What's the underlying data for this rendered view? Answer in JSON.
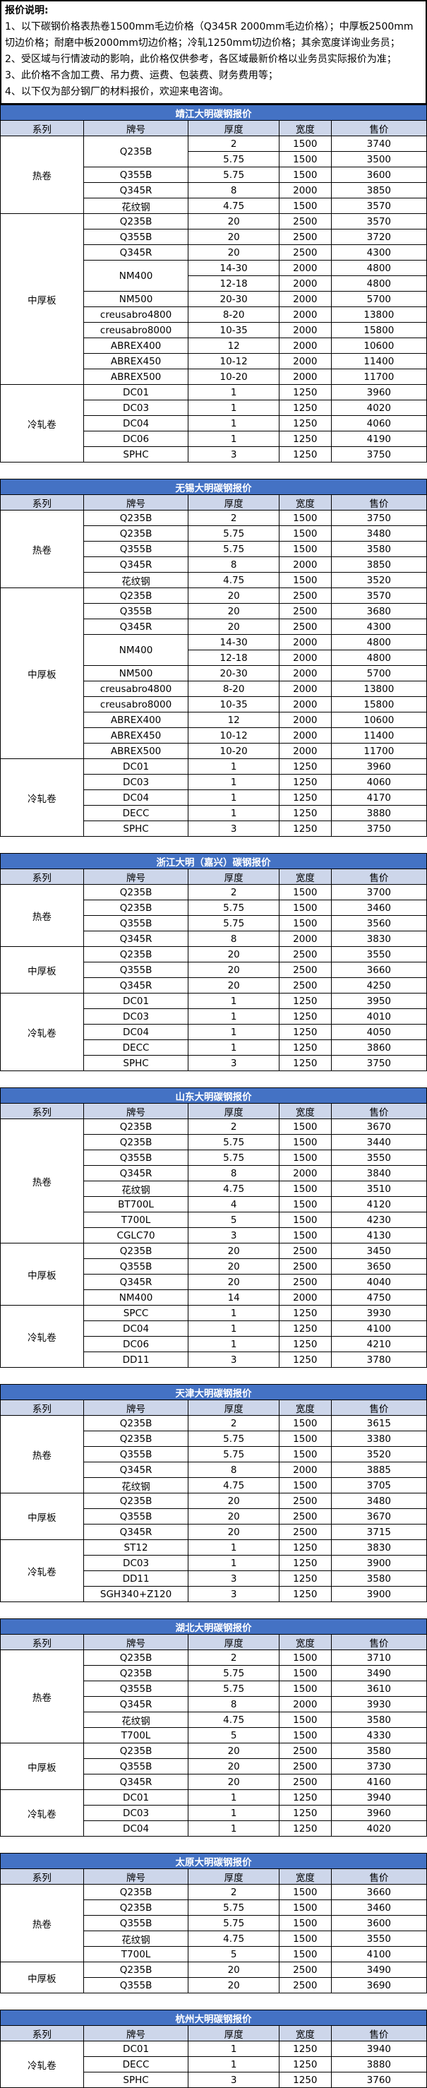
{
  "notes": {
    "heading": "报价说明:",
    "lines": [
      "1、以下碳钢价格表热卷1500mm毛边价格（Q345R 2000mm毛边价格）；中厚板2500mm切边价格；耐磨中板2000mm切边价格；冷轧1250mm切边价格；其余宽度详询业务员；",
      "2、受区域与行情波动的影响，此价格仅供参考，各区域最新价格以业务员实际报价为准；",
      "3、此价格不含加工费、吊力费、运费、包装费、财务费用等；",
      "4、以下仅为部分钢厂的材料报价，欢迎来电咨询。"
    ]
  },
  "columns": [
    "系列",
    "牌号",
    "厚度",
    "宽度",
    "售价"
  ],
  "colors": {
    "title_bg": "#4472C4",
    "title_text": "#FFFFFF",
    "header_bg": "#CDD6EA",
    "border": "#000000"
  },
  "tables": [
    {
      "title": "靖江大明碳钢报价",
      "groups": [
        {
          "series": "热卷",
          "rows": [
            {
              "grade": "Q235B",
              "gspan": 2,
              "t": "2",
              "w": "1500",
              "p": "3740"
            },
            {
              "t": "5.75",
              "w": "1500",
              "p": "3500"
            },
            {
              "grade": "Q355B",
              "t": "5.75",
              "w": "1500",
              "p": "3600"
            },
            {
              "grade": "Q345R",
              "t": "8",
              "w": "2000",
              "p": "3850"
            },
            {
              "grade": "花纹钢",
              "t": "4.75",
              "w": "1500",
              "p": "3570"
            }
          ]
        },
        {
          "series": "中厚板",
          "rows": [
            {
              "grade": "Q235B",
              "t": "20",
              "w": "2500",
              "p": "3570"
            },
            {
              "grade": "Q355B",
              "t": "20",
              "w": "2500",
              "p": "3720"
            },
            {
              "grade": "Q345R",
              "t": "20",
              "w": "2500",
              "p": "4300"
            },
            {
              "grade": "NM400",
              "gspan": 2,
              "t": "14-30",
              "w": "2000",
              "p": "4800"
            },
            {
              "t": "12-18",
              "w": "2000",
              "p": "4800"
            },
            {
              "grade": "NM500",
              "t": "20-30",
              "w": "2000",
              "p": "5700"
            },
            {
              "grade": "creusabro4800",
              "t": "8-20",
              "w": "2000",
              "p": "13800"
            },
            {
              "grade": "creusabro8000",
              "t": "10-35",
              "w": "2000",
              "p": "15800"
            },
            {
              "grade": "ABREX400",
              "t": "12",
              "w": "2000",
              "p": "10600"
            },
            {
              "grade": "ABREX450",
              "t": "10-12",
              "w": "2000",
              "p": "11400"
            },
            {
              "grade": "ABREX500",
              "t": "10-20",
              "w": "2000",
              "p": "11700"
            }
          ]
        },
        {
          "series": "冷轧卷",
          "rows": [
            {
              "grade": "DC01",
              "t": "1",
              "w": "1250",
              "p": "3960"
            },
            {
              "grade": "DC03",
              "t": "1",
              "w": "1250",
              "p": "4020"
            },
            {
              "grade": "DC04",
              "t": "1",
              "w": "1250",
              "p": "4060"
            },
            {
              "grade": "DC06",
              "t": "1",
              "w": "1250",
              "p": "4190"
            },
            {
              "grade": "SPHC",
              "t": "3",
              "w": "1250",
              "p": "3750"
            }
          ]
        }
      ]
    },
    {
      "title": "无锡大明碳钢报价",
      "groups": [
        {
          "series": "热卷",
          "rows": [
            {
              "grade": "Q235B",
              "t": "2",
              "w": "1500",
              "p": "3750"
            },
            {
              "grade": "Q235B",
              "t": "5.75",
              "w": "1500",
              "p": "3480"
            },
            {
              "grade": "Q355B",
              "t": "5.75",
              "w": "1500",
              "p": "3580"
            },
            {
              "grade": "Q345R",
              "t": "8",
              "w": "2000",
              "p": "3850"
            },
            {
              "grade": "花纹钢",
              "t": "4.75",
              "w": "1500",
              "p": "3520"
            }
          ]
        },
        {
          "series": "中厚板",
          "rows": [
            {
              "grade": "Q235B",
              "t": "20",
              "w": "2500",
              "p": "3570"
            },
            {
              "grade": "Q355B",
              "t": "20",
              "w": "2500",
              "p": "3680"
            },
            {
              "grade": "Q345R",
              "t": "20",
              "w": "2500",
              "p": "4300"
            },
            {
              "grade": "NM400",
              "gspan": 2,
              "t": "14-30",
              "w": "2000",
              "p": "4800"
            },
            {
              "t": "12-18",
              "w": "2000",
              "p": "4800"
            },
            {
              "grade": "NM500",
              "t": "20-30",
              "w": "2000",
              "p": "5700"
            },
            {
              "grade": "creusabro4800",
              "t": "8-20",
              "w": "2000",
              "p": "13800"
            },
            {
              "grade": "creusabro8000",
              "t": "10-35",
              "w": "2000",
              "p": "15800"
            },
            {
              "grade": "ABREX400",
              "t": "12",
              "w": "2000",
              "p": "10600"
            },
            {
              "grade": "ABREX450",
              "t": "10-12",
              "w": "2000",
              "p": "11400"
            },
            {
              "grade": "ABREX500",
              "t": "10-20",
              "w": "2000",
              "p": "11700"
            }
          ]
        },
        {
          "series": "冷轧卷",
          "rows": [
            {
              "grade": "DC01",
              "t": "1",
              "w": "1250",
              "p": "3960"
            },
            {
              "grade": "DC03",
              "t": "1",
              "w": "1250",
              "p": "4060"
            },
            {
              "grade": "DC04",
              "t": "1",
              "w": "1250",
              "p": "4170"
            },
            {
              "grade": "DECC",
              "t": "1",
              "w": "1250",
              "p": "3880"
            },
            {
              "grade": "SPHC",
              "t": "3",
              "w": "1250",
              "p": "3750"
            }
          ]
        }
      ]
    },
    {
      "title": "浙江大明（嘉兴）碳钢报价",
      "groups": [
        {
          "series": "热卷",
          "rows": [
            {
              "grade": "Q235B",
              "t": "2",
              "w": "1500",
              "p": "3700"
            },
            {
              "grade": "Q235B",
              "t": "5.75",
              "w": "1500",
              "p": "3460"
            },
            {
              "grade": "Q355B",
              "t": "5.75",
              "w": "1500",
              "p": "3560"
            },
            {
              "grade": "Q345R",
              "t": "8",
              "w": "2000",
              "p": "3830"
            }
          ]
        },
        {
          "series": "中厚板",
          "rows": [
            {
              "grade": "Q235B",
              "t": "20",
              "w": "2500",
              "p": "3550"
            },
            {
              "grade": "Q355B",
              "t": "20",
              "w": "2500",
              "p": "3660"
            },
            {
              "grade": "Q345R",
              "t": "20",
              "w": "2500",
              "p": "4250"
            }
          ]
        },
        {
          "series": "冷轧卷",
          "rows": [
            {
              "grade": "DC01",
              "t": "1",
              "w": "1250",
              "p": "3950"
            },
            {
              "grade": "DC03",
              "t": "1",
              "w": "1250",
              "p": "4010"
            },
            {
              "grade": "DC04",
              "t": "1",
              "w": "1250",
              "p": "4050"
            },
            {
              "grade": "DECC",
              "t": "1",
              "w": "1250",
              "p": "3860"
            },
            {
              "grade": "SPHC",
              "t": "3",
              "w": "1250",
              "p": "3750"
            }
          ]
        }
      ]
    },
    {
      "title": "山东大明碳钢报价",
      "groups": [
        {
          "series": "热卷",
          "rows": [
            {
              "grade": "Q235B",
              "t": "2",
              "w": "1500",
              "p": "3670"
            },
            {
              "grade": "Q235B",
              "t": "5.75",
              "w": "1500",
              "p": "3440"
            },
            {
              "grade": "Q355B",
              "t": "5.75",
              "w": "1500",
              "p": "3550"
            },
            {
              "grade": "Q345R",
              "t": "8",
              "w": "2000",
              "p": "3840"
            },
            {
              "grade": "花纹钢",
              "t": "4.75",
              "w": "1500",
              "p": "3510"
            },
            {
              "grade": "BT700L",
              "t": "4",
              "w": "1500",
              "p": "4120"
            },
            {
              "grade": "T700L",
              "t": "5",
              "w": "1500",
              "p": "4230"
            },
            {
              "grade": "CGLC70",
              "t": "3",
              "w": "1500",
              "p": "4130"
            }
          ]
        },
        {
          "series": "中厚板",
          "rows": [
            {
              "grade": "Q235B",
              "t": "20",
              "w": "2500",
              "p": "3450"
            },
            {
              "grade": "Q355B",
              "t": "20",
              "w": "2500",
              "p": "3650"
            },
            {
              "grade": "Q345R",
              "t": "20",
              "w": "2500",
              "p": "4040"
            },
            {
              "grade": "NM400",
              "t": "14",
              "w": "2000",
              "p": "4750"
            }
          ]
        },
        {
          "series": "冷轧卷",
          "rows": [
            {
              "grade": "SPCC",
              "t": "1",
              "w": "1250",
              "p": "3930"
            },
            {
              "grade": "DC04",
              "t": "1",
              "w": "1250",
              "p": "4100"
            },
            {
              "grade": "DC06",
              "t": "1",
              "w": "1250",
              "p": "4210"
            },
            {
              "grade": "DD11",
              "t": "3",
              "w": "1250",
              "p": "3780"
            }
          ]
        }
      ]
    },
    {
      "title": "天津大明碳钢报价",
      "groups": [
        {
          "series": "热卷",
          "rows": [
            {
              "grade": "Q235B",
              "t": "2",
              "w": "1500",
              "p": "3615"
            },
            {
              "grade": "Q235B",
              "t": "5.75",
              "w": "1500",
              "p": "3380"
            },
            {
              "grade": "Q355B",
              "t": "5.75",
              "w": "1500",
              "p": "3520"
            },
            {
              "grade": "Q345R",
              "t": "8",
              "w": "2000",
              "p": "3885"
            },
            {
              "grade": "花纹钢",
              "t": "4.75",
              "w": "1500",
              "p": "3705"
            }
          ]
        },
        {
          "series": "中厚板",
          "rows": [
            {
              "grade": "Q235B",
              "t": "20",
              "w": "2500",
              "p": "3480"
            },
            {
              "grade": "Q355B",
              "t": "20",
              "w": "2500",
              "p": "3670"
            },
            {
              "grade": "Q345R",
              "t": "20",
              "w": "2500",
              "p": "3715"
            }
          ]
        },
        {
          "series": "冷轧卷",
          "rows": [
            {
              "grade": "ST12",
              "t": "1",
              "w": "1250",
              "p": "3830"
            },
            {
              "grade": "DC03",
              "t": "1",
              "w": "1250",
              "p": "3900"
            },
            {
              "grade": "DD11",
              "t": "3",
              "w": "1250",
              "p": "3580"
            },
            {
              "grade": "SGH340+Z120",
              "t": "3",
              "w": "1250",
              "p": "3900"
            }
          ]
        }
      ]
    },
    {
      "title": "湖北大明碳钢报价",
      "groups": [
        {
          "series": "热卷",
          "rows": [
            {
              "grade": "Q235B",
              "t": "2",
              "w": "1500",
              "p": "3710"
            },
            {
              "grade": "Q235B",
              "t": "5.75",
              "w": "1500",
              "p": "3490"
            },
            {
              "grade": "Q355B",
              "t": "5.75",
              "w": "1500",
              "p": "3610"
            },
            {
              "grade": "Q345R",
              "t": "8",
              "w": "2000",
              "p": "3930"
            },
            {
              "grade": "花纹钢",
              "t": "4.75",
              "w": "1500",
              "p": "3580"
            },
            {
              "grade": "T700L",
              "t": "5",
              "w": "1500",
              "p": "4330"
            }
          ]
        },
        {
          "series": "中厚板",
          "rows": [
            {
              "grade": "Q235B",
              "t": "20",
              "w": "2500",
              "p": "3580"
            },
            {
              "grade": "Q355B",
              "t": "20",
              "w": "2500",
              "p": "3730"
            },
            {
              "grade": "Q345R",
              "t": "20",
              "w": "2500",
              "p": "4160"
            }
          ]
        },
        {
          "series": "冷轧卷",
          "rows": [
            {
              "grade": "DC01",
              "t": "1",
              "w": "1250",
              "p": "3940"
            },
            {
              "grade": "DC03",
              "t": "1",
              "w": "1250",
              "p": "3960"
            },
            {
              "grade": "DC04",
              "t": "1",
              "w": "1250",
              "p": "4020"
            }
          ]
        }
      ]
    },
    {
      "title": "太原大明碳钢报价",
      "groups": [
        {
          "series": "热卷",
          "rows": [
            {
              "grade": "Q235B",
              "t": "2",
              "w": "1500",
              "p": "3660"
            },
            {
              "grade": "Q235B",
              "t": "5.75",
              "w": "1500",
              "p": "3460"
            },
            {
              "grade": "Q355B",
              "t": "5.75",
              "w": "1500",
              "p": "3600"
            },
            {
              "grade": "花纹钢",
              "t": "4.75",
              "w": "1500",
              "p": "3550"
            },
            {
              "grade": "T700L",
              "t": "5",
              "w": "1500",
              "p": "4100"
            }
          ]
        },
        {
          "series": "中厚板",
          "rows": [
            {
              "grade": "Q235B",
              "t": "20",
              "w": "2500",
              "p": "3490"
            },
            {
              "grade": "Q355B",
              "t": "20",
              "w": "2500",
              "p": "3690"
            }
          ]
        }
      ]
    },
    {
      "title": "杭州大明碳钢报价",
      "groups": [
        {
          "series": "冷轧卷",
          "rows": [
            {
              "grade": "DC01",
              "t": "1",
              "w": "1250",
              "p": "3940"
            },
            {
              "grade": "DECC",
              "t": "1",
              "w": "1250",
              "p": "3880"
            },
            {
              "grade": "SPHC",
              "t": "3",
              "w": "1250",
              "p": "3760"
            }
          ]
        }
      ]
    }
  ]
}
